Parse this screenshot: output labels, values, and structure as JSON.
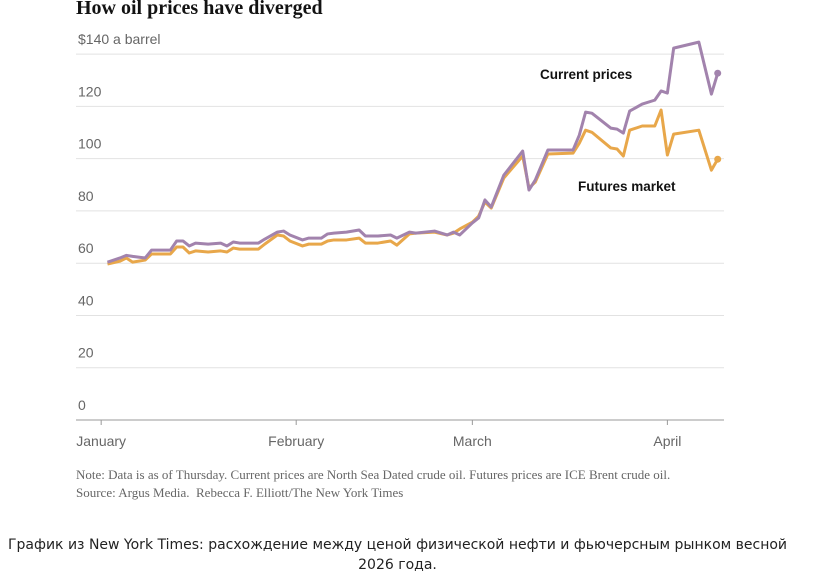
{
  "chart_data": {
    "type": "line",
    "title": "How oil prices have diverged",
    "x": [
      2,
      4,
      5,
      6,
      8,
      9,
      12,
      13,
      14,
      15,
      16,
      18,
      20,
      21,
      22,
      23,
      26,
      27,
      29,
      30,
      31,
      33,
      34,
      36,
      37,
      38,
      40,
      42,
      43,
      45,
      47,
      48,
      50,
      51,
      54,
      56,
      57,
      58,
      60,
      61,
      62,
      63,
      65,
      68,
      69,
      70,
      72,
      76,
      77,
      78,
      79,
      82,
      83,
      84,
      85,
      87,
      89,
      90,
      91,
      92,
      96,
      98,
      99
    ],
    "xlim": [
      -3,
      100
    ],
    "xticks": [
      {
        "value": 1,
        "label": "January"
      },
      {
        "value": 32,
        "label": "February"
      },
      {
        "value": 60,
        "label": "March"
      },
      {
        "value": 91,
        "label": "April"
      }
    ],
    "ylim": [
      0,
      150
    ],
    "yticks": [
      0,
      20,
      40,
      60,
      80,
      100,
      120,
      {
        "value": 140,
        "label": "$140 a barrel"
      }
    ],
    "grid": true,
    "series": [
      {
        "name": "Current prices",
        "color": "#a283ad",
        "values": [
          60.4,
          62,
          63,
          62.6,
          62,
          65,
          65,
          68.5,
          68.5,
          66.6,
          67.7,
          67.3,
          67.7,
          66.6,
          68.1,
          67.7,
          67.7,
          69.2,
          71.9,
          72.3,
          70.8,
          68.9,
          69.6,
          69.6,
          71.2,
          71.5,
          71.9,
          72.7,
          70.4,
          70.4,
          70.8,
          69.6,
          71.9,
          71.5,
          72.3,
          70.8,
          71.9,
          70.8,
          75.4,
          77.3,
          84.2,
          81.5,
          93.7,
          102.9,
          88,
          91.8,
          103.3,
          103.3,
          109,
          117.8,
          117.4,
          111.7,
          111.3,
          109.8,
          118.2,
          120.9,
          122.4,
          125.9,
          125.1,
          142.3,
          144.6,
          124.7,
          132.7
        ]
      },
      {
        "name": "Futures market",
        "color": "#e8a74a",
        "values": [
          59.7,
          60.8,
          62,
          60.4,
          61.2,
          63.5,
          63.5,
          66.2,
          66.2,
          63.9,
          64.7,
          64.3,
          64.7,
          64.3,
          65.8,
          65.4,
          65.4,
          67.3,
          70.8,
          70.4,
          68.5,
          66.6,
          67.3,
          67.3,
          68.5,
          68.9,
          68.9,
          69.6,
          67.7,
          67.7,
          68.5,
          66.9,
          71.2,
          71.5,
          71.9,
          70.8,
          71.5,
          73.1,
          75.7,
          78,
          83.4,
          81.1,
          92.6,
          101,
          88.8,
          91,
          101.8,
          102.1,
          105.9,
          110.9,
          110.1,
          104.1,
          103.7,
          101,
          110.9,
          112.5,
          112.5,
          118.6,
          101.4,
          109.4,
          110.9,
          95.6,
          99.8
        ]
      }
    ],
    "note": "Note: Data is as of Thursday. Current prices are North Sea Dated crude oil. Futures prices are ICE Brent crude oil.",
    "source": "Source: Argus Media.",
    "credit": "Rebecca F. Elliott/The New York Times"
  },
  "caption": "График из New York Times: расхождение между ценой физической нефти и фьючерсным рынком весной 2026 года."
}
